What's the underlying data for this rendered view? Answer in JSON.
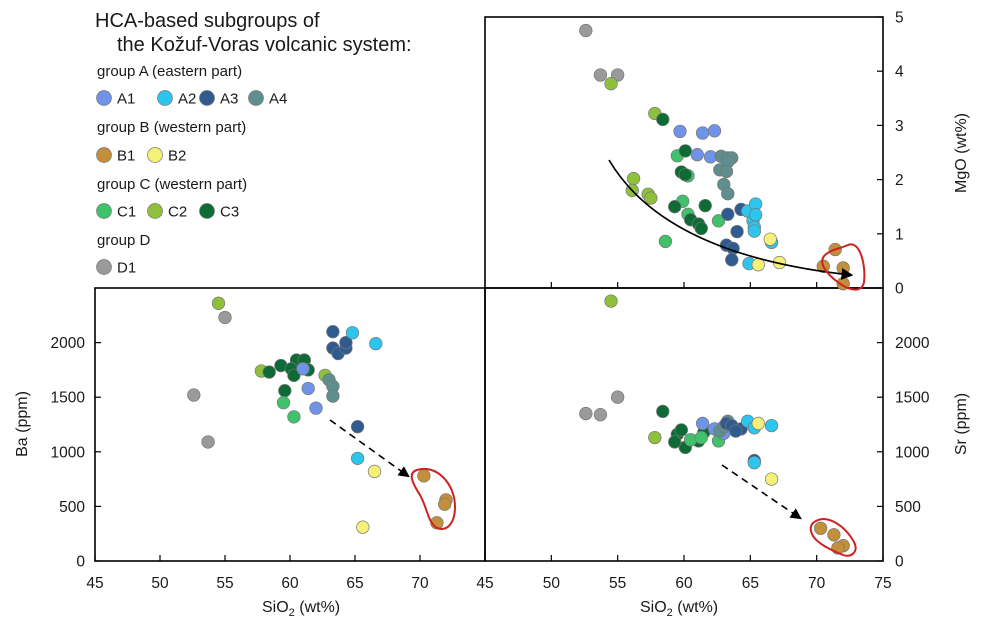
{
  "legend": {
    "title_line1": "HCA-based subgroups of",
    "title_line2": "the Kožuf-Voras volcanic system:",
    "groups": [
      {
        "label": "group A (eastern part)",
        "items": [
          {
            "key": "A1",
            "label": "A1",
            "color": "#6f93e6"
          },
          {
            "key": "A2",
            "label": "A2",
            "color": "#2cc5ee"
          },
          {
            "key": "A3",
            "label": "A3",
            "color": "#2f5b8e"
          },
          {
            "key": "A4",
            "label": "A4",
            "color": "#5e8e8e"
          }
        ]
      },
      {
        "label": "group B (western part)",
        "items": [
          {
            "key": "B1",
            "label": "B1",
            "color": "#c48f3a"
          },
          {
            "key": "B2",
            "label": "B2",
            "color": "#f5f077"
          }
        ]
      },
      {
        "label": "group C (western part)",
        "items": [
          {
            "key": "C1",
            "label": "C1",
            "color": "#3fc26a"
          },
          {
            "key": "C2",
            "label": "C2",
            "color": "#8fc03c"
          },
          {
            "key": "C3",
            "label": "C3",
            "color": "#0f6b35"
          }
        ]
      },
      {
        "label": "group D",
        "items": [
          {
            "key": "D1",
            "label": "D1",
            "color": "#9a9a9a"
          }
        ]
      }
    ]
  },
  "chart_data": [
    {
      "type": "scatter",
      "id": "mgo",
      "xlabel": "SiO2 (wt%)",
      "ylabel": "MgO (wt%)",
      "xlim": [
        45,
        75
      ],
      "ylim": [
        0,
        5
      ],
      "xticks": [],
      "yticks": [
        0,
        1,
        2,
        3,
        4,
        5
      ],
      "ytick_side": "right",
      "trend": "solid",
      "points": [
        {
          "g": "D1",
          "x": 52.6,
          "y": 4.75
        },
        {
          "g": "D1",
          "x": 53.7,
          "y": 3.93
        },
        {
          "g": "D1",
          "x": 55.0,
          "y": 3.93
        },
        {
          "g": "C2",
          "x": 54.5,
          "y": 3.77
        },
        {
          "g": "C2",
          "x": 57.8,
          "y": 3.22
        },
        {
          "g": "C2",
          "x": 56.2,
          "y": 2.02
        },
        {
          "g": "C2",
          "x": 56.1,
          "y": 1.8
        },
        {
          "g": "C2",
          "x": 57.3,
          "y": 1.73
        },
        {
          "g": "C2",
          "x": 57.5,
          "y": 1.66
        },
        {
          "g": "C1",
          "x": 59.5,
          "y": 2.44
        },
        {
          "g": "C1",
          "x": 60.3,
          "y": 2.07
        },
        {
          "g": "C1",
          "x": 60.3,
          "y": 1.36
        },
        {
          "g": "C1",
          "x": 59.9,
          "y": 1.6
        },
        {
          "g": "C1",
          "x": 58.6,
          "y": 0.86
        },
        {
          "g": "C1",
          "x": 62.6,
          "y": 1.24
        },
        {
          "g": "C3",
          "x": 58.4,
          "y": 3.11
        },
        {
          "g": "C3",
          "x": 60.1,
          "y": 2.53
        },
        {
          "g": "C3",
          "x": 59.8,
          "y": 2.14
        },
        {
          "g": "C3",
          "x": 60.1,
          "y": 2.09
        },
        {
          "g": "C3",
          "x": 59.3,
          "y": 1.5
        },
        {
          "g": "C3",
          "x": 61.6,
          "y": 1.52
        },
        {
          "g": "C3",
          "x": 60.5,
          "y": 1.26
        },
        {
          "g": "C3",
          "x": 61.1,
          "y": 1.18
        },
        {
          "g": "C3",
          "x": 61.3,
          "y": 1.1
        },
        {
          "g": "A1",
          "x": 59.7,
          "y": 2.89
        },
        {
          "g": "A1",
          "x": 61.4,
          "y": 2.86
        },
        {
          "g": "A1",
          "x": 62.3,
          "y": 2.9
        },
        {
          "g": "A1",
          "x": 61.0,
          "y": 2.46
        },
        {
          "g": "A1",
          "x": 62.0,
          "y": 2.42
        },
        {
          "g": "A4",
          "x": 62.8,
          "y": 2.43
        },
        {
          "g": "A4",
          "x": 63.3,
          "y": 2.4
        },
        {
          "g": "A4",
          "x": 63.6,
          "y": 2.4
        },
        {
          "g": "A4",
          "x": 63.3,
          "y": 2.33
        },
        {
          "g": "A4",
          "x": 62.7,
          "y": 2.18
        },
        {
          "g": "A4",
          "x": 63.2,
          "y": 2.15
        },
        {
          "g": "A4",
          "x": 63.0,
          "y": 1.91
        },
        {
          "g": "A4",
          "x": 63.3,
          "y": 1.74
        },
        {
          "g": "A3",
          "x": 63.3,
          "y": 1.36
        },
        {
          "g": "A3",
          "x": 64.3,
          "y": 1.45
        },
        {
          "g": "A3",
          "x": 64.0,
          "y": 1.04
        },
        {
          "g": "A3",
          "x": 63.2,
          "y": 0.79
        },
        {
          "g": "A3",
          "x": 63.7,
          "y": 0.73
        },
        {
          "g": "A3",
          "x": 63.6,
          "y": 0.52
        },
        {
          "g": "A2",
          "x": 64.8,
          "y": 1.42
        },
        {
          "g": "A2",
          "x": 65.4,
          "y": 1.55
        },
        {
          "g": "A2",
          "x": 65.2,
          "y": 1.24
        },
        {
          "g": "A2",
          "x": 65.4,
          "y": 1.35
        },
        {
          "g": "A2",
          "x": 65.3,
          "y": 1.12
        },
        {
          "g": "A2",
          "x": 65.3,
          "y": 1.05
        },
        {
          "g": "A2",
          "x": 66.6,
          "y": 0.84
        },
        {
          "g": "A2",
          "x": 64.9,
          "y": 0.45
        },
        {
          "g": "B2",
          "x": 66.5,
          "y": 0.9
        },
        {
          "g": "B2",
          "x": 65.6,
          "y": 0.43
        },
        {
          "g": "B2",
          "x": 67.2,
          "y": 0.47
        },
        {
          "g": "B1",
          "x": 71.4,
          "y": 0.71
        },
        {
          "g": "B1",
          "x": 70.5,
          "y": 0.4
        },
        {
          "g": "B1",
          "x": 72.0,
          "y": 0.37
        },
        {
          "g": "B1",
          "x": 72.0,
          "y": 0.08
        }
      ]
    },
    {
      "type": "scatter",
      "id": "ba",
      "xlabel": "SiO2 (wt%)",
      "ylabel": "Ba (ppm)",
      "xlim": [
        45,
        75
      ],
      "ylim": [
        0,
        2500
      ],
      "xticks": [
        45,
        50,
        55,
        60,
        65,
        70
      ],
      "yticks": [
        0,
        500,
        1000,
        1500,
        2000
      ],
      "ytick_side": "left",
      "trend": "dashed",
      "points": [
        {
          "g": "C2",
          "x": 54.5,
          "y": 2360
        },
        {
          "g": "D1",
          "x": 55.0,
          "y": 2230
        },
        {
          "g": "D1",
          "x": 52.6,
          "y": 1520
        },
        {
          "g": "D1",
          "x": 53.7,
          "y": 1090
        },
        {
          "g": "C2",
          "x": 57.8,
          "y": 1740
        },
        {
          "g": "C2",
          "x": 62.7,
          "y": 1700
        },
        {
          "g": "C3",
          "x": 58.4,
          "y": 1730
        },
        {
          "g": "C3",
          "x": 59.3,
          "y": 1790
        },
        {
          "g": "C3",
          "x": 60.5,
          "y": 1840
        },
        {
          "g": "C3",
          "x": 61.1,
          "y": 1840
        },
        {
          "g": "C3",
          "x": 60.1,
          "y": 1760
        },
        {
          "g": "C3",
          "x": 61.4,
          "y": 1750
        },
        {
          "g": "C3",
          "x": 60.3,
          "y": 1700
        },
        {
          "g": "C3",
          "x": 59.6,
          "y": 1560
        },
        {
          "g": "C1",
          "x": 59.5,
          "y": 1450
        },
        {
          "g": "C1",
          "x": 60.3,
          "y": 1320
        },
        {
          "g": "A1",
          "x": 61.4,
          "y": 1580
        },
        {
          "g": "A1",
          "x": 62.0,
          "y": 1400
        },
        {
          "g": "A1",
          "x": 61.0,
          "y": 1760
        },
        {
          "g": "A4",
          "x": 63.0,
          "y": 1660
        },
        {
          "g": "A4",
          "x": 63.3,
          "y": 1600
        },
        {
          "g": "A4",
          "x": 63.3,
          "y": 1510
        },
        {
          "g": "A3",
          "x": 63.3,
          "y": 2100
        },
        {
          "g": "A3",
          "x": 63.3,
          "y": 1950
        },
        {
          "g": "A3",
          "x": 63.7,
          "y": 1900
        },
        {
          "g": "A3",
          "x": 64.3,
          "y": 1950
        },
        {
          "g": "A3",
          "x": 64.3,
          "y": 2000
        },
        {
          "g": "A3",
          "x": 65.2,
          "y": 1230
        },
        {
          "g": "A2",
          "x": 64.8,
          "y": 2090
        },
        {
          "g": "A2",
          "x": 66.6,
          "y": 1990
        },
        {
          "g": "A2",
          "x": 65.2,
          "y": 940
        },
        {
          "g": "B2",
          "x": 66.5,
          "y": 820
        },
        {
          "g": "B2",
          "x": 65.6,
          "y": 310
        },
        {
          "g": "B1",
          "x": 70.3,
          "y": 780
        },
        {
          "g": "B1",
          "x": 72.0,
          "y": 560
        },
        {
          "g": "B1",
          "x": 71.9,
          "y": 520
        },
        {
          "g": "B1",
          "x": 71.3,
          "y": 350
        }
      ]
    },
    {
      "type": "scatter",
      "id": "sr",
      "xlabel": "SiO2 (wt%)",
      "ylabel": "Sr (ppm)",
      "xlim": [
        45,
        75
      ],
      "ylim": [
        0,
        2500
      ],
      "xticks": [
        45,
        50,
        55,
        60,
        65,
        70,
        75
      ],
      "yticks": [
        0,
        500,
        1000,
        1500,
        2000
      ],
      "ytick_side": "right",
      "trend": "dashed",
      "points": [
        {
          "g": "C2",
          "x": 54.5,
          "y": 2380
        },
        {
          "g": "D1",
          "x": 55.0,
          "y": 1500
        },
        {
          "g": "D1",
          "x": 52.6,
          "y": 1350
        },
        {
          "g": "D1",
          "x": 53.7,
          "y": 1340
        },
        {
          "g": "C2",
          "x": 57.8,
          "y": 1130
        },
        {
          "g": "C3",
          "x": 58.4,
          "y": 1370
        },
        {
          "g": "C3",
          "x": 59.5,
          "y": 1160
        },
        {
          "g": "C3",
          "x": 59.8,
          "y": 1200
        },
        {
          "g": "C3",
          "x": 60.1,
          "y": 1040
        },
        {
          "g": "C3",
          "x": 61.1,
          "y": 1100
        },
        {
          "g": "C3",
          "x": 61.5,
          "y": 1180
        },
        {
          "g": "C3",
          "x": 59.3,
          "y": 1090
        },
        {
          "g": "C1",
          "x": 60.5,
          "y": 1110
        },
        {
          "g": "C1",
          "x": 61.3,
          "y": 1130
        },
        {
          "g": "C1",
          "x": 62.6,
          "y": 1100
        },
        {
          "g": "A1",
          "x": 61.4,
          "y": 1260
        },
        {
          "g": "A1",
          "x": 62.3,
          "y": 1210
        },
        {
          "g": "A1",
          "x": 63.0,
          "y": 1170
        },
        {
          "g": "A4",
          "x": 62.7,
          "y": 1190
        },
        {
          "g": "A4",
          "x": 63.3,
          "y": 1280
        },
        {
          "g": "A4",
          "x": 63.0,
          "y": 1230
        },
        {
          "g": "A3",
          "x": 63.2,
          "y": 1260
        },
        {
          "g": "A3",
          "x": 63.6,
          "y": 1240
        },
        {
          "g": "A3",
          "x": 64.3,
          "y": 1210
        },
        {
          "g": "A3",
          "x": 65.3,
          "y": 920
        },
        {
          "g": "A3",
          "x": 63.9,
          "y": 1190
        },
        {
          "g": "A2",
          "x": 64.8,
          "y": 1280
        },
        {
          "g": "A2",
          "x": 65.3,
          "y": 1220
        },
        {
          "g": "A2",
          "x": 66.6,
          "y": 1240
        },
        {
          "g": "A2",
          "x": 65.3,
          "y": 900
        },
        {
          "g": "B2",
          "x": 65.6,
          "y": 1260
        },
        {
          "g": "B2",
          "x": 66.6,
          "y": 750
        },
        {
          "g": "B1",
          "x": 70.3,
          "y": 300
        },
        {
          "g": "B1",
          "x": 71.3,
          "y": 240
        },
        {
          "g": "B1",
          "x": 72.0,
          "y": 140
        },
        {
          "g": "B1",
          "x": 71.6,
          "y": 120
        }
      ]
    }
  ]
}
